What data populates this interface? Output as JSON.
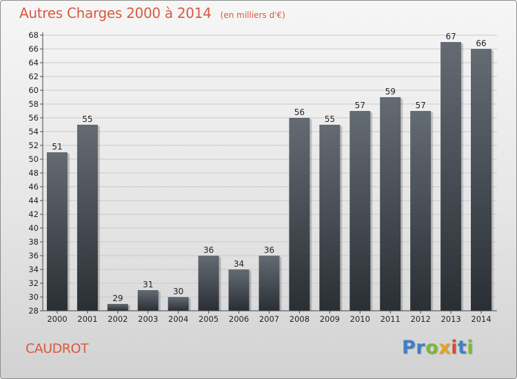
{
  "chart_data": {
    "type": "bar",
    "title": "Autres Charges 2000 à 2014",
    "subtitle": "(en milliers d'€)",
    "categories": [
      "2000",
      "2001",
      "2002",
      "2003",
      "2004",
      "2005",
      "2006",
      "2007",
      "2008",
      "2009",
      "2010",
      "2011",
      "2012",
      "2013",
      "2014"
    ],
    "values": [
      51,
      55,
      29,
      31,
      30,
      36,
      34,
      36,
      56,
      55,
      57,
      59,
      57,
      67,
      66
    ],
    "ylim": [
      28,
      68
    ],
    "yticks": [
      28,
      30,
      32,
      34,
      36,
      38,
      40,
      42,
      44,
      46,
      48,
      50,
      52,
      54,
      56,
      58,
      60,
      62,
      64,
      66,
      68
    ],
    "grid": true,
    "legend": "none",
    "bar_color": "#3a4048"
  },
  "place_name": "CAUDROT",
  "brand": {
    "letters": [
      {
        "ch": "P",
        "color": "#3f7fc6"
      },
      {
        "ch": "r",
        "color": "#3f7fc6"
      },
      {
        "ch": "o",
        "color": "#7bb83a"
      },
      {
        "ch": "x",
        "color": "#e8a21f"
      },
      {
        "ch": "i",
        "color": "#d64a35"
      },
      {
        "ch": "t",
        "color": "#3f7fc6"
      },
      {
        "ch": "i",
        "color": "#7bb83a"
      }
    ]
  }
}
